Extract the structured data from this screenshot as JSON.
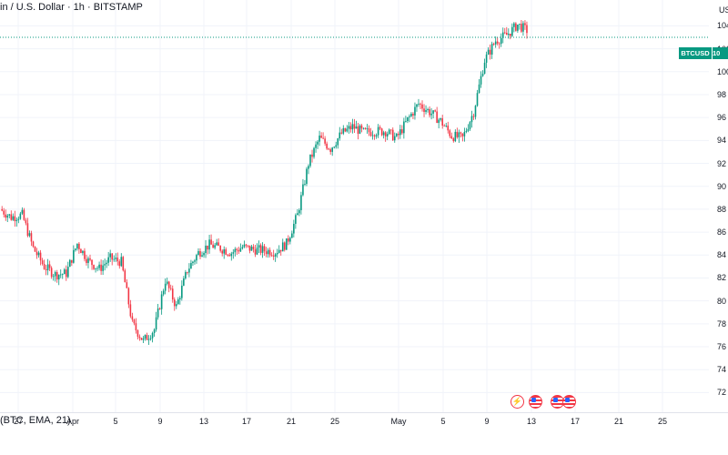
{
  "header": {
    "title": "in / U.S. Dollar · 1h · BITSTAMP"
  },
  "indicator": {
    "label": "(BTC, EMA, 21)"
  },
  "price_scale": {
    "currency": "US"
  },
  "symbol_tag": {
    "label": "BTCUSD",
    "value": "10"
  },
  "events": [
    {
      "icon": "lightning-icon"
    },
    {
      "icon": "us-flag-icon"
    },
    {
      "icon": "us-flag-icon"
    },
    {
      "icon": "us-flag-icon"
    }
  ],
  "colors": {
    "up": "#089981",
    "down": "#f23645",
    "grid": "#f0f3fa",
    "price_line": "#089981"
  },
  "chart_data": {
    "type": "candlestick",
    "title": "in / U.S. Dollar · 1h · BITSTAMP",
    "y_ticks": [
      "72",
      "74",
      "76",
      "78",
      "80",
      "82",
      "84",
      "86",
      "88",
      "90",
      "92",
      "94",
      "96",
      "98",
      "100",
      "102",
      "104"
    ],
    "ylim": [
      71000,
      105300
    ],
    "x_ticks": [
      "27",
      "Apr",
      "5",
      "9",
      "13",
      "17",
      "21",
      "25",
      "May",
      "5",
      "9",
      "13",
      "17",
      "21",
      "25"
    ],
    "grid": true,
    "last_price": 103000,
    "series": [
      {
        "name": "BTCUSD",
        "x": [
          "2025-03-25",
          "2025-03-26",
          "2025-03-27",
          "2025-03-28",
          "2025-03-29",
          "2025-03-30",
          "2025-03-31",
          "2025-04-01",
          "2025-04-02",
          "2025-04-03",
          "2025-04-04",
          "2025-04-05",
          "2025-04-06",
          "2025-04-07",
          "2025-04-08",
          "2025-04-09",
          "2025-04-10",
          "2025-04-11",
          "2025-04-12",
          "2025-04-13",
          "2025-04-14",
          "2025-04-15",
          "2025-04-16",
          "2025-04-17",
          "2025-04-18",
          "2025-04-19",
          "2025-04-20",
          "2025-04-21",
          "2025-04-22",
          "2025-04-23",
          "2025-04-24",
          "2025-04-25",
          "2025-04-26",
          "2025-04-27",
          "2025-04-28",
          "2025-04-29",
          "2025-04-30",
          "2025-05-01",
          "2025-05-02",
          "2025-05-03",
          "2025-05-04",
          "2025-05-05",
          "2025-05-06",
          "2025-05-07",
          "2025-05-08",
          "2025-05-09",
          "2025-05-10",
          "2025-05-11",
          "2025-05-12"
        ],
        "values": [
          88000,
          87300,
          87500,
          84600,
          83000,
          82300,
          82400,
          85000,
          83500,
          82800,
          83700,
          83400,
          78000,
          76500,
          77500,
          81800,
          79500,
          82700,
          84200,
          84900,
          84600,
          84200,
          84700,
          84500,
          84400,
          84300,
          85000,
          87500,
          92000,
          94200,
          93300,
          94600,
          95200,
          94700,
          94800,
          94800,
          94200,
          95800,
          97200,
          96500,
          95700,
          94400,
          94200,
          96500,
          101000,
          102700,
          103200,
          104100,
          103500
        ]
      }
    ]
  }
}
